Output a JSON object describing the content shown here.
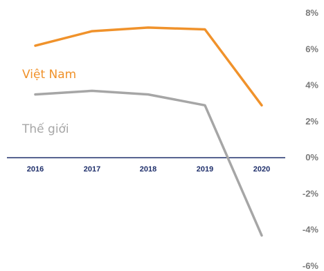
{
  "chart_data": {
    "type": "line",
    "x": [
      "2016",
      "2017",
      "2018",
      "2019",
      "2020"
    ],
    "series": [
      {
        "name": "Việt Nam",
        "values": [
          6.2,
          7.0,
          7.2,
          7.1,
          2.9
        ],
        "color": "#f0922b"
      },
      {
        "name": "Thế giới",
        "values": [
          3.5,
          3.7,
          3.5,
          2.9,
          -4.3
        ],
        "color": "#a6a6a6"
      }
    ],
    "ylim": [
      -6,
      8
    ],
    "yticks": [
      8,
      6,
      4,
      2,
      0,
      -2,
      -4,
      -6
    ],
    "ytick_labels": [
      "8%",
      "6%",
      "4%",
      "2%",
      "0%",
      "-2%",
      "-4%",
      "-6%"
    ],
    "grid": false,
    "zero_line_color": "#1f2f6b",
    "title": "",
    "xlabel": "",
    "ylabel": ""
  }
}
